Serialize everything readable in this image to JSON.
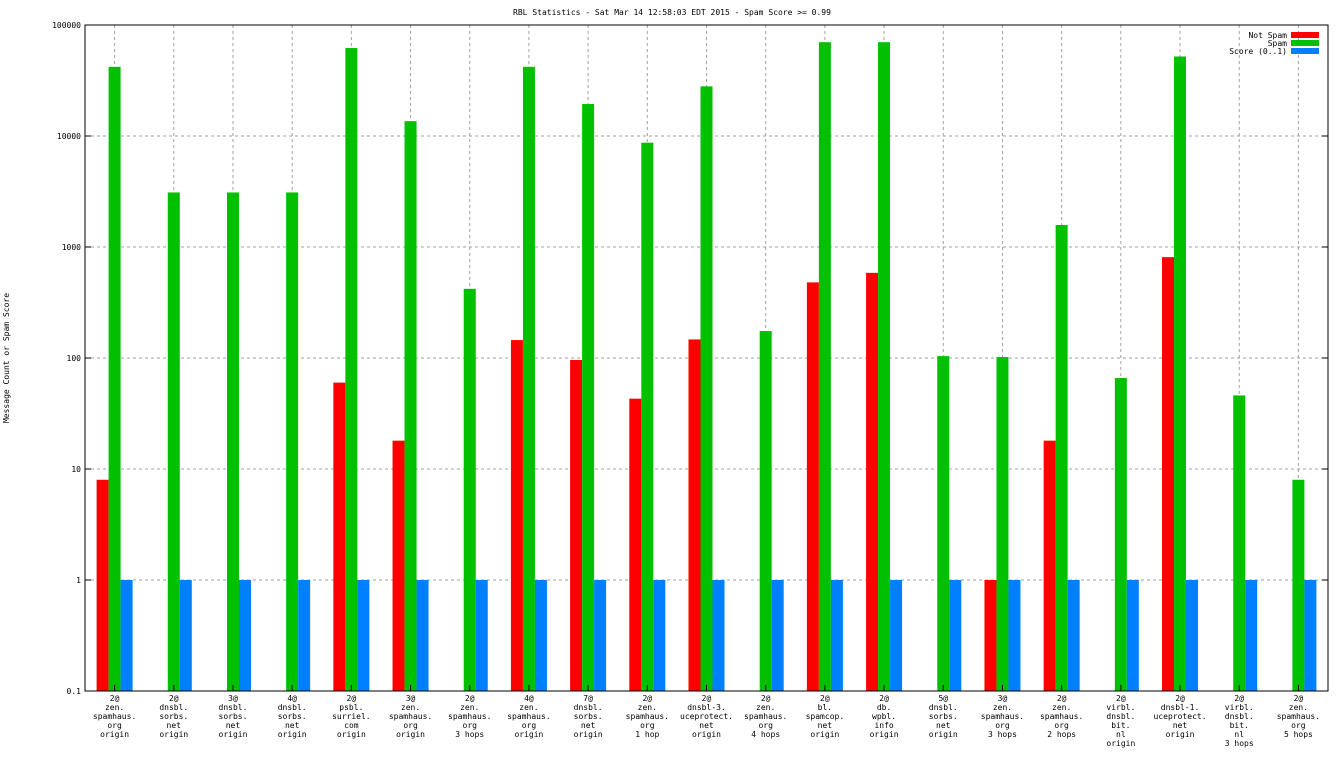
{
  "chart_data": {
    "type": "bar",
    "title": "RBL Statistics - Sat Mar 14 12:58:03 EDT 2015 - Spam Score >= 0.99",
    "xlabel": "",
    "ylabel": "Message Count or Spam Score",
    "yscale": "log",
    "ylim": [
      0.1,
      100000
    ],
    "yticks": [
      "0.1",
      "1",
      "10",
      "100",
      "1000",
      "10000",
      "100000"
    ],
    "grid": true,
    "legend_position": "top-right",
    "categories": [
      [
        "2@",
        "zen.",
        "spamhaus.",
        "org",
        "origin"
      ],
      [
        "2@",
        "dnsbl.",
        "sorbs.",
        "net",
        "origin"
      ],
      [
        "3@",
        "dnsbl.",
        "sorbs.",
        "net",
        "origin"
      ],
      [
        "4@",
        "dnsbl.",
        "sorbs.",
        "net",
        "origin"
      ],
      [
        "2@",
        "psbl.",
        "surriel.",
        "com",
        "origin"
      ],
      [
        "3@",
        "zen.",
        "spamhaus.",
        "org",
        "origin"
      ],
      [
        "2@",
        "zen.",
        "spamhaus.",
        "org",
        "3 hops"
      ],
      [
        "4@",
        "zen.",
        "spamhaus.",
        "org",
        "origin"
      ],
      [
        "7@",
        "dnsbl.",
        "sorbs.",
        "net",
        "origin"
      ],
      [
        "2@",
        "zen.",
        "spamhaus.",
        "org",
        "1 hop"
      ],
      [
        "2@",
        "dnsbl-3.",
        "uceprotect.",
        "net",
        "origin"
      ],
      [
        "2@",
        "zen.",
        "spamhaus.",
        "org",
        "4 hops"
      ],
      [
        "2@",
        "bl.",
        "spamcop.",
        "net",
        "origin"
      ],
      [
        "2@",
        "db.",
        "wpbl.",
        "info",
        "origin"
      ],
      [
        "5@",
        "dnsbl.",
        "sorbs.",
        "net",
        "origin"
      ],
      [
        "3@",
        "zen.",
        "spamhaus.",
        "org",
        "3 hops"
      ],
      [
        "2@",
        "zen.",
        "spamhaus.",
        "org",
        "2 hops"
      ],
      [
        "2@",
        "virbl.",
        "dnsbl.",
        "bit.",
        "nl",
        "origin"
      ],
      [
        "2@",
        "dnsbl-1.",
        "uceprotect.",
        "net",
        "origin"
      ],
      [
        "2@",
        "virbl.",
        "dnsbl.",
        "bit.",
        "nl",
        "3 hops"
      ],
      [
        "2@",
        "zen.",
        "spamhaus.",
        "org",
        "5 hops"
      ]
    ],
    "series": [
      {
        "name": "Not Spam",
        "color": "#ff0000",
        "values": [
          8,
          null,
          null,
          null,
          60,
          18,
          null,
          145,
          96,
          43,
          147,
          null,
          480,
          585,
          null,
          1,
          18,
          null,
          810,
          null,
          null
        ]
      },
      {
        "name": "Spam",
        "color": "#00c000",
        "values": [
          42000,
          3100,
          3100,
          3100,
          62000,
          13600,
          420,
          42000,
          19400,
          8700,
          28000,
          175,
          70000,
          70000,
          104,
          102,
          1580,
          66,
          52000,
          46,
          8
        ]
      },
      {
        "name": "Score (0..1)",
        "color": "#0080ff",
        "values": [
          1,
          1,
          1,
          1,
          1,
          1,
          1,
          1,
          1,
          1,
          1,
          1,
          1,
          1,
          1,
          1,
          1,
          1,
          1,
          1,
          1
        ]
      }
    ]
  }
}
